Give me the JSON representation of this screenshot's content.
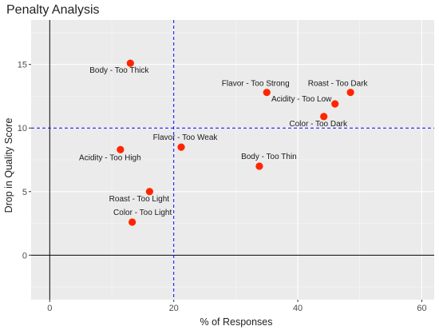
{
  "chart_data": {
    "type": "scatter",
    "title": "Penalty Analysis",
    "xlabel": "% of Responses",
    "ylabel": "Drop in Quality Score",
    "xlim": [
      -3,
      62
    ],
    "ylim": [
      -3.5,
      18.5
    ],
    "x_ticks": [
      0,
      20,
      40,
      60
    ],
    "y_ticks": [
      0,
      5,
      10,
      15
    ],
    "grid": true,
    "background": "#ebebeb",
    "point_color": "#ff2500",
    "reference_line_color": "#0000ff",
    "zero_line_color": "#000000",
    "reference_lines": {
      "x": 20,
      "y": 10
    },
    "points": [
      {
        "label": "Body - Too Thick",
        "x": 13,
        "y": 15.1
      },
      {
        "label": "Flavor - Too Strong",
        "x": 35,
        "y": 12.8
      },
      {
        "label": "Roast - Too Dark",
        "x": 48.5,
        "y": 12.8
      },
      {
        "label": "Acidity - Too Low",
        "x": 46,
        "y": 11.9
      },
      {
        "label": "Color - Too Dark",
        "x": 44.2,
        "y": 10.9
      },
      {
        "label": "Flavor - Too Weak",
        "x": 21.2,
        "y": 8.5
      },
      {
        "label": "Acidity - Too High",
        "x": 11.4,
        "y": 8.3
      },
      {
        "label": "Body - Too Thin",
        "x": 33.8,
        "y": 7.0
      },
      {
        "label": "Roast - Too Light",
        "x": 16.1,
        "y": 5.0
      },
      {
        "label": "Color - Too Light",
        "x": 13.3,
        "y": 2.6
      }
    ]
  }
}
